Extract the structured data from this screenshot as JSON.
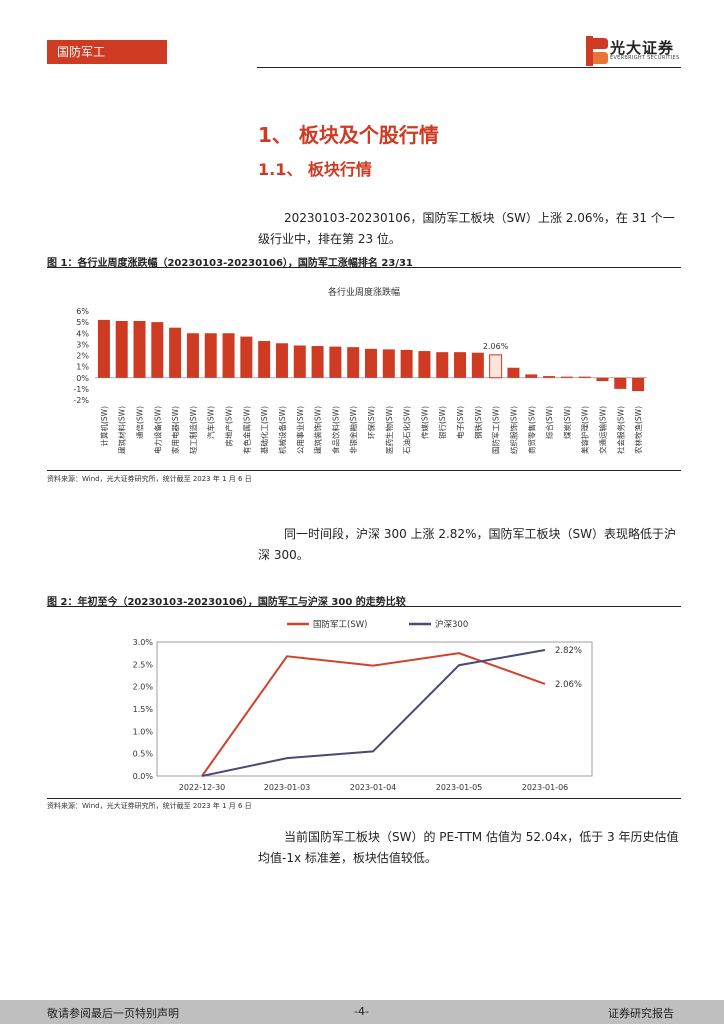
{
  "header": {
    "section_tag": "国防军工",
    "brand_name": "光大证券",
    "brand_sub": "EVERBRIGHT SECURITIES"
  },
  "headings": {
    "h1": "1、 板块及个股行情",
    "h2": "1.1、  板块行情"
  },
  "paragraphs": {
    "p1": "20230103-20230106，国防军工板块（SW）上涨 2.06%，在 31 个一级行业中，排在第 23 位。",
    "p2": "同一时间段，沪深 300 上涨 2.82%，国防军工板块（SW）表现略低于沪深 300。",
    "p3": "当前国防军工板块（SW）的 PE-TTM 估值为 52.04x，低于 3 年历史估值均值-1x 标准差，板块估值较低。"
  },
  "figure1": {
    "caption": "图 1：各行业周度涨跌幅（20230103-20230106），国防军工涨幅排名 23/31",
    "source": "资料来源：Wind，光大证券研究所，统计截至 2023 年 1 月 6 日"
  },
  "figure2": {
    "caption": "图 2：年初至今（20230103-20230106），国防军工与沪深 300 的走势比较",
    "source": "资料来源：Wind，光大证券研究所，统计截至 2023 年 1 月 6 日"
  },
  "footer": {
    "left": "敬请参阅最后一页特别声明",
    "center": "-4-",
    "right": "证券研究报告"
  },
  "chart_data": [
    {
      "type": "bar",
      "title": "各行业周度涨跌幅",
      "categories": [
        "计算机(SW)",
        "建筑材料(SW)",
        "通信(SW)",
        "电力设备(SW)",
        "家用电器(SW)",
        "轻工制造(SW)",
        "汽车(SW)",
        "房地产(SW)",
        "有色金属(SW)",
        "基础化工(SW)",
        "机械设备(SW)",
        "公用事业(SW)",
        "建筑装饰(SW)",
        "食品饮料(SW)",
        "非银金融(SW)",
        "环保(SW)",
        "医药生物(SW)",
        "石油石化(SW)",
        "传媒(SW)",
        "银行(SW)",
        "电子(SW)",
        "钢铁(SW)",
        "国防军工(SW)",
        "纺织服饰(SW)",
        "商贸零售(SW)",
        "综合(SW)",
        "煤炭(SW)",
        "美容护理(SW)",
        "交通运输(SW)",
        "社会服务(SW)",
        "农林牧渔(SW)"
      ],
      "values": [
        5.2,
        5.1,
        5.1,
        5.0,
        4.5,
        4.0,
        4.0,
        4.0,
        3.7,
        3.3,
        3.1,
        2.9,
        2.85,
        2.8,
        2.75,
        2.6,
        2.55,
        2.5,
        2.4,
        2.3,
        2.3,
        2.25,
        2.06,
        0.9,
        0.3,
        0.15,
        0.1,
        0.1,
        -0.3,
        -1.0,
        -1.2
      ],
      "highlight_index": 22,
      "highlight_label": "2.06%",
      "ylim": [
        -2,
        6
      ],
      "yticks": [
        "-2%",
        "-1%",
        "0%",
        "1%",
        "2%",
        "3%",
        "4%",
        "5%",
        "6%"
      ],
      "colors": {
        "bar": "#cf3a23",
        "highlight_fill": "#fde4dc"
      }
    },
    {
      "type": "line",
      "x": [
        "2022-12-30",
        "2023-01-03",
        "2023-01-04",
        "2023-01-05",
        "2023-01-06"
      ],
      "series": [
        {
          "name": "国防军工(SW)",
          "values": [
            0.0,
            2.68,
            2.47,
            2.75,
            2.06
          ],
          "color": "#d2422b",
          "end_label": "2.06%"
        },
        {
          "name": "沪深300",
          "values": [
            0.0,
            0.4,
            0.55,
            2.48,
            2.82
          ],
          "color": "#4a4a78",
          "end_label": "2.82%"
        }
      ],
      "ylim": [
        0,
        3
      ],
      "yticks": [
        "0.0%",
        "0.5%",
        "1.0%",
        "1.5%",
        "2.0%",
        "2.5%",
        "3.0%"
      ],
      "legend": "top"
    }
  ]
}
